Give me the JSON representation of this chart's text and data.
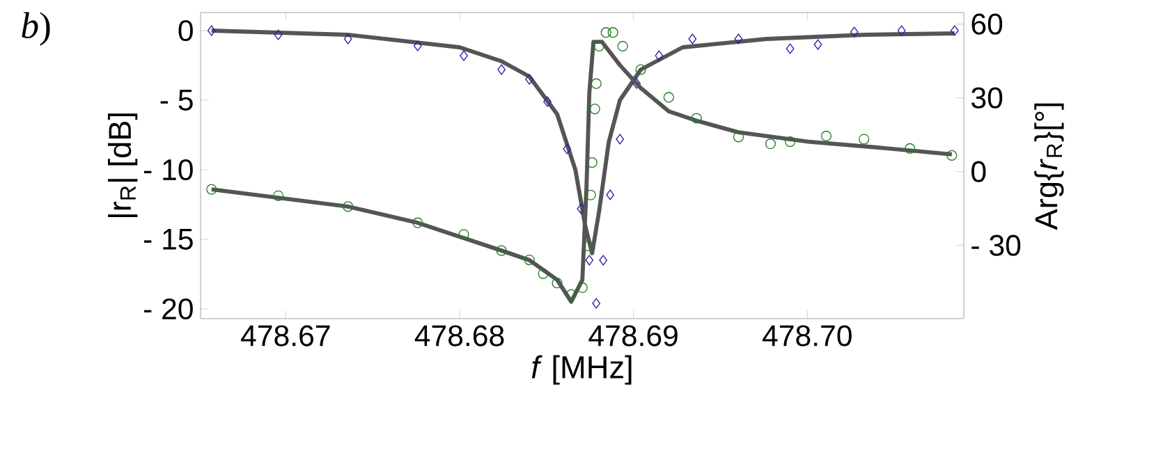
{
  "chart_data": {
    "type": "scatter",
    "xlabel": "*f*  [MHz]",
    "ylabel": "|r$_{R}$| [dB]",
    "y2label": "Arg{*r*$_{R}$}[°]",
    "annotations": [
      "*b*)"
    ],
    "xlim": [
      478.6651,
      478.709
    ],
    "ylim": [
      -20.7,
      1.3
    ],
    "y2lim": [
      -59.8,
      64.7
    ],
    "xticks": [
      478.67,
      478.68,
      478.69,
      {
        "value": 478.7,
        "label": "478.70"
      }
    ],
    "yticks": [
      0,
      {
        "value": -5,
        "label": "- 5"
      },
      {
        "value": -10,
        "label": "- 10"
      },
      {
        "value": -15,
        "label": "- 15"
      },
      {
        "value": -20,
        "label": "- 20"
      }
    ],
    "y2ticks": [
      60,
      30,
      0,
      {
        "value": -30,
        "label": "- 30"
      }
    ],
    "series": [
      {
        "marker": "diamond",
        "color": "#2222aa",
        "x": [
          478.66573,
          478.66957,
          478.67358,
          478.67759,
          478.68024,
          478.68241,
          478.68401,
          478.68505,
          478.68618,
          478.68698,
          478.68746,
          478.68786,
          478.68826,
          478.68866,
          478.68922,
          478.69018,
          478.69147,
          478.69339,
          478.69604,
          478.69901,
          478.70061,
          478.7027,
          478.70542,
          478.70847
        ],
        "values": [
          0,
          -0.3,
          -0.6,
          -1.1,
          -1.8,
          -2.8,
          -3.5,
          -5.1,
          -8.5,
          -12.8,
          -16.5,
          -19.6,
          -16.5,
          -11.8,
          -7.8,
          -3.8,
          -1.8,
          -0.6,
          -0.6,
          -1.3,
          -1.0,
          -0.1,
          0,
          0
        ]
      },
      {
        "marker": "circle",
        "axis": "y2",
        "color": "#1e7d1e",
        "x": [
          478.66573,
          478.66957,
          478.67358,
          478.67759,
          478.68024,
          478.68241,
          478.68401,
          478.68481,
          478.68561,
          478.68642,
          478.68706,
          478.68738,
          478.68754,
          478.68762,
          478.68778,
          478.68786,
          478.68802,
          478.68842,
          478.68882,
          478.68938,
          478.69042,
          478.69203,
          478.69363,
          478.69604,
          478.69788,
          478.69901,
          478.70109,
          478.70326,
          478.7059,
          478.70831
        ],
        "values": [
          -7.2,
          -9.8,
          -14.2,
          -20.8,
          -25.5,
          -32.1,
          -35.9,
          -41.5,
          -45.3,
          -50,
          -47.2,
          -30.2,
          -9.5,
          3.7,
          25.5,
          35.8,
          51,
          56.6,
          56.6,
          51,
          41.5,
          30.2,
          21.7,
          14.1,
          11.3,
          12.2,
          14.5,
          13.2,
          9.4,
          6.6
        ]
      },
      {
        "type": "line",
        "color": "#555555",
        "x": [
          478.66573,
          478.67358,
          478.68,
          478.68241,
          478.68401,
          478.68561,
          478.68666,
          478.68722,
          478.68762,
          478.68802,
          478.68858,
          478.68922,
          478.69042,
          478.69283,
          478.69764,
          478.70326,
          478.70847
        ],
        "values": [
          0,
          -0.3,
          -1.2,
          -2.2,
          -3.3,
          -6,
          -10,
          -14,
          -16,
          -13,
          -8,
          -5,
          -2.8,
          -1.2,
          -0.6,
          -0.3,
          -0.2
        ]
      },
      {
        "type": "line",
        "axis": "y2",
        "color": "#555555",
        "x": [
          478.66573,
          478.67358,
          478.67759,
          478.68241,
          478.68401,
          478.68561,
          478.68642,
          478.68706,
          478.6873,
          478.68746,
          478.6877,
          478.68818,
          478.68922,
          478.69042,
          478.69203,
          478.69363,
          478.69604,
          478.70005,
          478.70406,
          478.70831
        ],
        "values": [
          -7.2,
          -14.2,
          -20.8,
          -32.1,
          -36,
          -44,
          -52.9,
          -44,
          -5.7,
          32,
          52.8,
          52.8,
          43.3,
          34,
          24.5,
          20.7,
          16,
          12.2,
          9.8,
          7
        ]
      }
    ]
  }
}
